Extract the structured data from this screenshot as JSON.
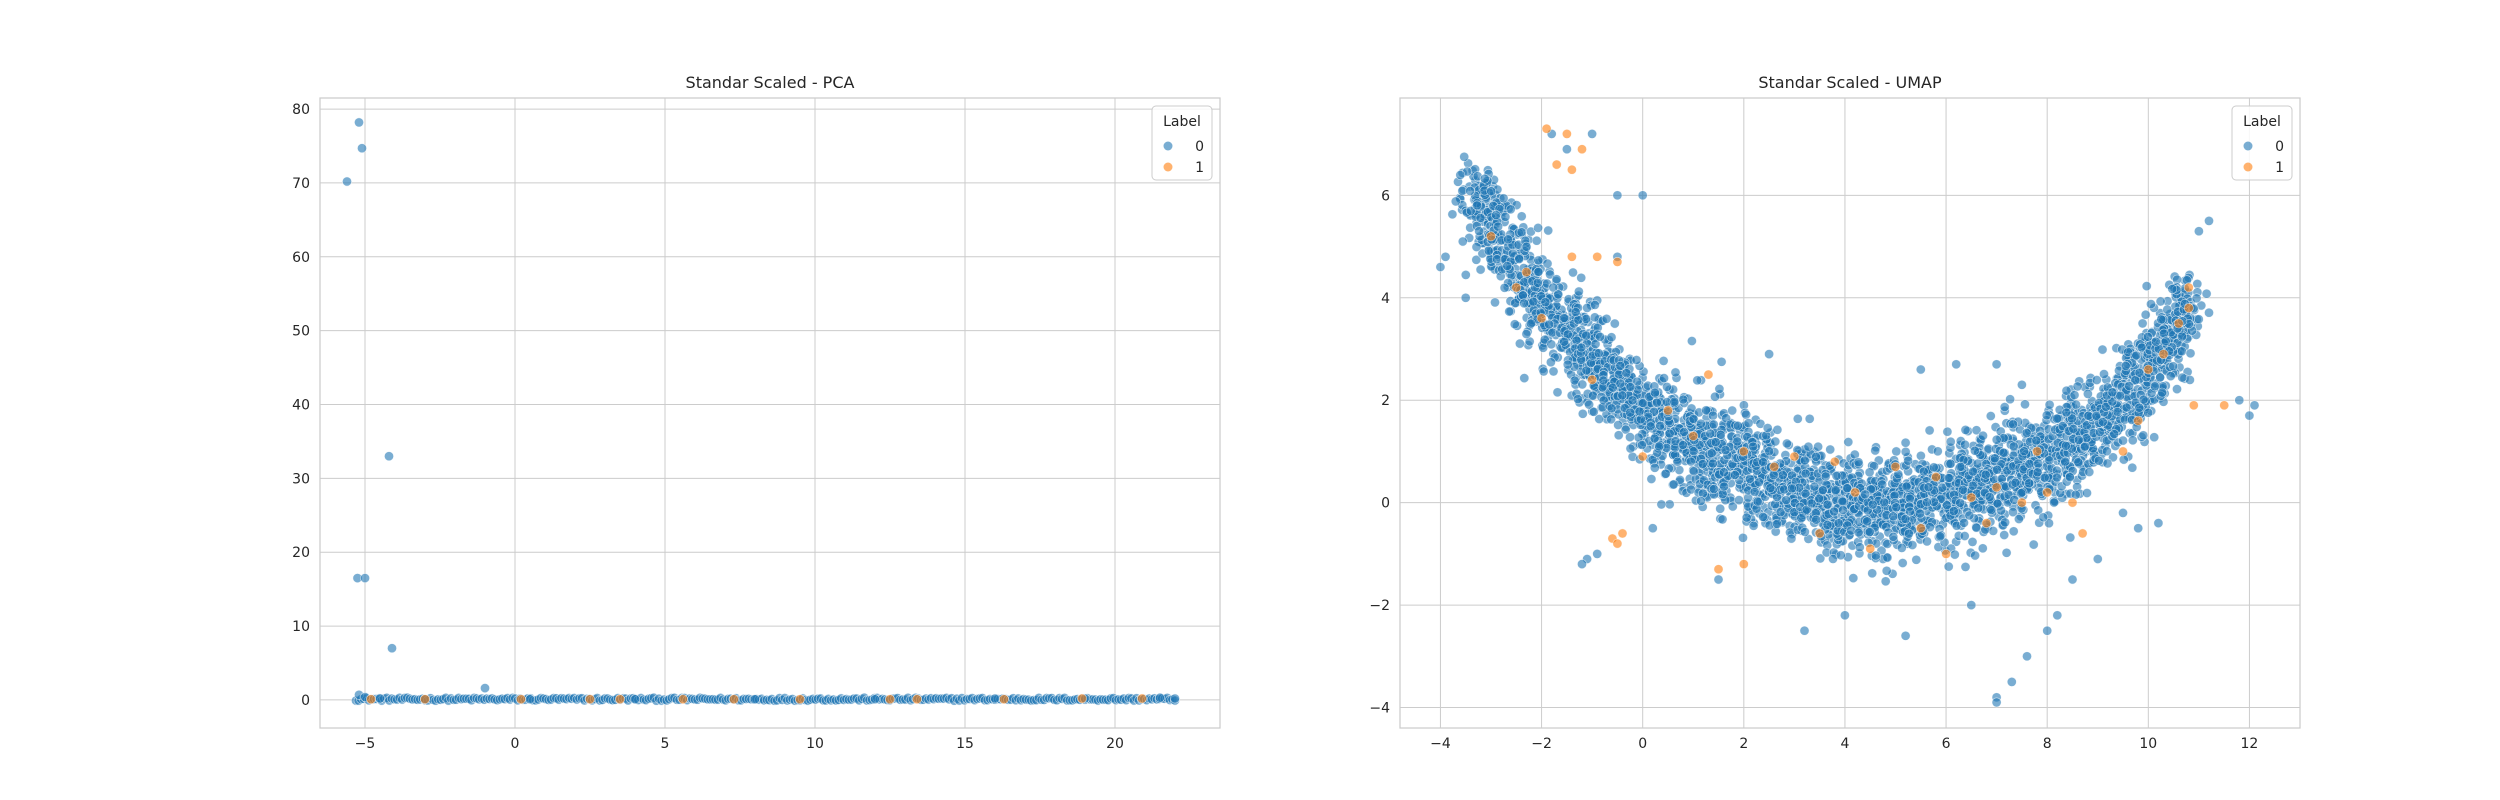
{
  "colors": {
    "series_0": "#1f77b4",
    "series_1": "#ff7f0e",
    "grid": "#cccccc",
    "frame": "#cccccc",
    "background": "#ffffff"
  },
  "chart_data": [
    {
      "type": "scatter",
      "title": "Standar Scaled - PCA",
      "xlabel": "",
      "ylabel": "",
      "xlim": [
        -6.5,
        23.5
      ],
      "ylim": [
        -3.8,
        81.5
      ],
      "xticks": [
        -5,
        0,
        5,
        10,
        15,
        20
      ],
      "yticks": [
        0,
        10,
        20,
        30,
        40,
        50,
        60,
        70,
        80
      ],
      "grid": true,
      "legend": {
        "title": "Label",
        "placement": "top-right",
        "entries": [
          "0",
          "1"
        ]
      },
      "series": [
        {
          "name": "0",
          "points": [
            [
              -5.6,
              70.2
            ],
            [
              -5.2,
              78.2
            ],
            [
              -5.1,
              74.7
            ],
            [
              -5.25,
              16.5
            ],
            [
              -5.0,
              16.5
            ],
            [
              -4.2,
              33.0
            ],
            [
              -4.1,
              7.0
            ],
            [
              -1.0,
              1.6
            ],
            [
              -5.2,
              0.7
            ],
            [
              -5.0,
              0.4
            ],
            [
              -4.5,
              0.2
            ],
            [
              -3.0,
              0.1
            ],
            [
              0.5,
              0.1
            ],
            [
              4.0,
              0.1
            ],
            [
              8.0,
              0.1
            ],
            [
              12.0,
              0.1
            ],
            [
              16.0,
              0.2
            ],
            [
              19.0,
              0.2
            ],
            [
              21.5,
              0.3
            ],
            [
              22.0,
              0.2
            ]
          ],
          "band": {
            "x_range": [
              -5.3,
              22.0
            ],
            "y": 0.1,
            "y_spread": 0.4
          }
        },
        {
          "name": "1",
          "points": [
            [
              -4.8,
              0.1
            ],
            [
              -3.0,
              0.1
            ],
            [
              0.2,
              0.1
            ],
            [
              2.5,
              0.1
            ],
            [
              3.5,
              0.1
            ],
            [
              5.6,
              0.1
            ],
            [
              7.3,
              0.1
            ],
            [
              9.5,
              0.1
            ],
            [
              12.5,
              0.1
            ],
            [
              13.4,
              0.1
            ],
            [
              16.3,
              0.1
            ],
            [
              18.9,
              0.2
            ],
            [
              20.9,
              0.2
            ]
          ]
        }
      ]
    },
    {
      "type": "scatter",
      "title": "Standar Scaled - UMAP",
      "xlabel": "",
      "ylabel": "",
      "xlim": [
        -4.8,
        13.0
      ],
      "ylim": [
        -4.4,
        7.9
      ],
      "xticks": [
        -4,
        -2,
        0,
        2,
        4,
        6,
        8,
        10,
        12
      ],
      "yticks": [
        -4,
        -2,
        0,
        2,
        4,
        6
      ],
      "grid": true,
      "legend": {
        "title": "Label",
        "placement": "top-right",
        "entries": [
          "0",
          "1"
        ]
      },
      "series": [
        {
          "name": "0",
          "spine": [
            [
              -3.4,
              6.3,
              0.4
            ],
            [
              -3.0,
              5.4,
              0.6
            ],
            [
              -2.5,
              4.6,
              0.7
            ],
            [
              -2.0,
              3.9,
              0.7
            ],
            [
              -1.5,
              3.3,
              0.7
            ],
            [
              -1.0,
              2.8,
              0.7
            ],
            [
              -0.5,
              2.3,
              0.7
            ],
            [
              0.0,
              1.8,
              0.7
            ],
            [
              0.5,
              1.4,
              0.8
            ],
            [
              1.0,
              1.1,
              0.8
            ],
            [
              1.5,
              0.9,
              0.8
            ],
            [
              2.0,
              0.7,
              0.8
            ],
            [
              2.5,
              0.5,
              0.8
            ],
            [
              3.0,
              0.3,
              0.8
            ],
            [
              3.5,
              0.1,
              0.8
            ],
            [
              4.0,
              0.0,
              0.8
            ],
            [
              4.5,
              -0.1,
              0.8
            ],
            [
              5.0,
              -0.1,
              0.8
            ],
            [
              5.5,
              0.0,
              0.8
            ],
            [
              6.0,
              0.1,
              0.8
            ],
            [
              6.5,
              0.3,
              0.8
            ],
            [
              7.0,
              0.5,
              0.8
            ],
            [
              7.5,
              0.7,
              0.8
            ],
            [
              8.0,
              0.9,
              0.8
            ],
            [
              8.5,
              1.2,
              0.8
            ],
            [
              9.0,
              1.6,
              0.8
            ],
            [
              9.5,
              2.0,
              0.8
            ],
            [
              10.0,
              2.6,
              0.8
            ],
            [
              10.5,
              3.3,
              0.7
            ],
            [
              10.8,
              4.0,
              0.5
            ]
          ],
          "points": [
            [
              -4.0,
              4.6
            ],
            [
              -3.9,
              4.8
            ],
            [
              -3.5,
              4.0
            ],
            [
              -1.8,
              7.2
            ],
            [
              -1.5,
              6.9
            ],
            [
              -1.0,
              7.2
            ],
            [
              -0.5,
              6.0
            ],
            [
              0.0,
              6.0
            ],
            [
              -0.5,
              4.8
            ],
            [
              -1.1,
              -1.1
            ],
            [
              -1.2,
              -1.2
            ],
            [
              -0.9,
              -1.0
            ],
            [
              7.0,
              -3.8
            ],
            [
              7.3,
              -3.5
            ],
            [
              7.6,
              -3.0
            ],
            [
              8.0,
              -2.5
            ],
            [
              8.2,
              -2.2
            ],
            [
              7.0,
              -3.9
            ],
            [
              11.0,
              5.3
            ],
            [
              11.2,
              5.5
            ],
            [
              12.0,
              1.7
            ],
            [
              12.1,
              1.9
            ],
            [
              11.8,
              2.0
            ],
            [
              5.5,
              2.6
            ],
            [
              6.2,
              2.7
            ],
            [
              7.0,
              2.7
            ],
            [
              7.5,
              2.3
            ],
            [
              2.5,
              2.9
            ],
            [
              3.2,
              -2.5
            ],
            [
              4.0,
              -2.2
            ],
            [
              5.2,
              -2.6
            ],
            [
              6.5,
              -2.0
            ],
            [
              1.5,
              -1.5
            ],
            [
              0.2,
              -0.5
            ],
            [
              9.5,
              -0.2
            ],
            [
              9.8,
              -0.5
            ],
            [
              10.2,
              -0.4
            ],
            [
              9.0,
              -1.1
            ],
            [
              8.5,
              -1.5
            ]
          ]
        },
        {
          "name": "1",
          "points": [
            [
              -1.9,
              7.3
            ],
            [
              -1.5,
              7.2
            ],
            [
              -1.2,
              6.9
            ],
            [
              -1.7,
              6.6
            ],
            [
              -1.4,
              6.5
            ],
            [
              -2.3,
              4.5
            ],
            [
              -2.5,
              4.2
            ],
            [
              -1.4,
              4.8
            ],
            [
              -0.9,
              4.8
            ],
            [
              -0.5,
              4.7
            ],
            [
              -3.0,
              5.2
            ],
            [
              -2.0,
              3.6
            ],
            [
              -1.0,
              2.4
            ],
            [
              0.5,
              1.8
            ],
            [
              1.0,
              1.3
            ],
            [
              2.0,
              1.0
            ],
            [
              1.3,
              2.5
            ],
            [
              2.6,
              0.7
            ],
            [
              3.0,
              0.9
            ],
            [
              3.8,
              0.8
            ],
            [
              4.2,
              0.2
            ],
            [
              5.0,
              0.7
            ],
            [
              5.5,
              -0.5
            ],
            [
              6.5,
              0.1
            ],
            [
              7.0,
              0.3
            ],
            [
              7.5,
              0.0
            ],
            [
              8.0,
              0.2
            ],
            [
              8.5,
              0.0
            ],
            [
              9.5,
              1.0
            ],
            [
              9.8,
              1.6
            ],
            [
              10.0,
              2.6
            ],
            [
              10.3,
              2.9
            ],
            [
              10.6,
              3.5
            ],
            [
              10.8,
              4.2
            ],
            [
              10.8,
              3.8
            ],
            [
              -0.6,
              -0.7
            ],
            [
              -0.5,
              -0.8
            ],
            [
              -0.4,
              -0.6
            ],
            [
              1.5,
              -1.3
            ],
            [
              2.0,
              -1.2
            ],
            [
              3.5,
              -0.6
            ],
            [
              4.5,
              -0.9
            ],
            [
              6.0,
              -1.0
            ],
            [
              6.8,
              -0.4
            ],
            [
              8.7,
              -0.6
            ],
            [
              11.5,
              1.9
            ],
            [
              10.9,
              1.9
            ],
            [
              7.8,
              1.0
            ],
            [
              5.8,
              0.5
            ],
            [
              0.0,
              0.9
            ]
          ]
        }
      ]
    }
  ]
}
